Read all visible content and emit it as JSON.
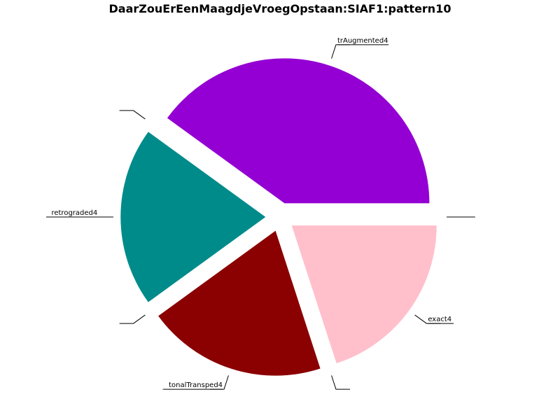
{
  "chart_data": {
    "type": "pie",
    "title": "DaarZouErEenMaagdjeVroegOpstaan:SIAF1:pattern10",
    "start_angle_deg": 0,
    "direction": "counterclockwise",
    "slices": [
      {
        "label": "trAugmented4",
        "value": 4,
        "color": "#9400d3",
        "exploded": true
      },
      {
        "label": "",
        "value": 0,
        "color": "#9400d3",
        "exploded": true
      },
      {
        "label": "retrograded4",
        "value": 2,
        "color": "#008b8b",
        "exploded": true
      },
      {
        "label": "",
        "value": 0,
        "color": "#008b8b",
        "exploded": true
      },
      {
        "label": "tonalTransped4",
        "value": 2,
        "color": "#8b0000",
        "exploded": true
      },
      {
        "label": "",
        "value": 0,
        "color": "#8b0000",
        "exploded": true
      },
      {
        "label": "exact4",
        "value": 2,
        "color": "#ffc0cb",
        "exploded": true
      },
      {
        "label": "",
        "value": 0,
        "color": "#ffc0cb",
        "exploded": true
      }
    ]
  }
}
